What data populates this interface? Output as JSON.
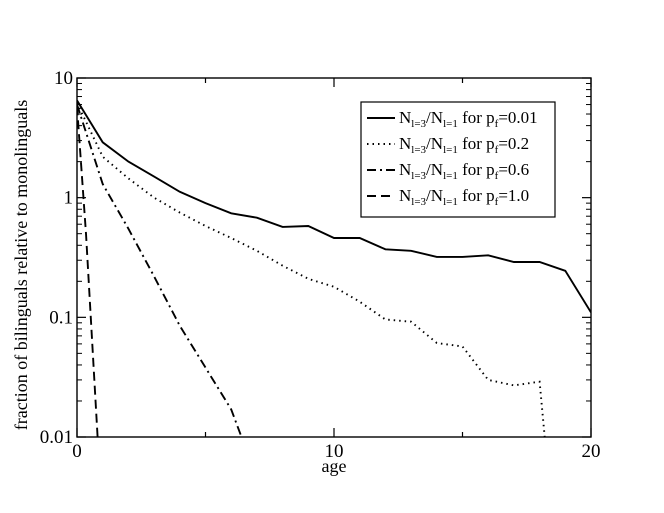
{
  "chart_data": {
    "type": "line",
    "title": "",
    "xlabel": "age",
    "ylabel": "fraction of bilinguals relative to monolinguals",
    "xlim": [
      0,
      20
    ],
    "ylim": [
      0.01,
      10
    ],
    "yscale": "log",
    "grid": false,
    "legend_position": "top-right",
    "x_ticks": [
      {
        "value": 0,
        "label": "0"
      },
      {
        "value": 10,
        "label": "10"
      },
      {
        "value": 20,
        "label": "20"
      }
    ],
    "y_ticks": [
      {
        "value": 0.01,
        "label": "0.01"
      },
      {
        "value": 0.1,
        "label": "0.1"
      },
      {
        "value": 1,
        "label": "1"
      },
      {
        "value": 10,
        "label": "10"
      }
    ],
    "series": [
      {
        "legend": {
          "n": "N",
          "sub1": "l=3",
          "slash": "/",
          "sub2": "l=1",
          "mid": " for p",
          "psub": "f",
          "val": "=0.01"
        },
        "dash": "solid",
        "x": [
          0,
          1,
          2,
          3,
          4,
          5,
          6,
          7,
          8,
          9,
          10,
          11,
          12,
          13,
          14,
          15,
          16,
          17,
          18,
          19,
          20
        ],
        "y": [
          6.5,
          2.9,
          2.0,
          1.5,
          1.12,
          0.9,
          0.74,
          0.68,
          0.57,
          0.58,
          0.46,
          0.46,
          0.37,
          0.36,
          0.32,
          0.32,
          0.33,
          0.29,
          0.29,
          0.245,
          0.11
        ]
      },
      {
        "legend": {
          "n": "N",
          "sub1": "l=3",
          "slash": "/",
          "sub2": "l=1",
          "mid": " for p",
          "psub": "f",
          "val": "=0.2"
        },
        "dash": "dotted",
        "x": [
          0,
          1,
          2,
          3,
          4,
          5,
          6,
          7,
          8,
          9,
          10,
          11,
          12,
          13,
          14,
          15,
          16,
          17,
          18,
          18.2
        ],
        "y": [
          6.2,
          2.2,
          1.45,
          1.0,
          0.75,
          0.58,
          0.46,
          0.36,
          0.27,
          0.21,
          0.18,
          0.135,
          0.096,
          0.092,
          0.061,
          0.057,
          0.03,
          0.027,
          0.029,
          0.01
        ]
      },
      {
        "legend": {
          "n": "N",
          "sub1": "l=3",
          "slash": "/",
          "sub2": "l=1",
          "mid": " for p",
          "psub": "f",
          "val": "=0.6"
        },
        "dash": "dashdot",
        "x": [
          0,
          1,
          2,
          3,
          4,
          5,
          6,
          6.4
        ],
        "y": [
          6.0,
          1.3,
          0.55,
          0.22,
          0.085,
          0.038,
          0.017,
          0.01
        ]
      },
      {
        "legend": {
          "n": "N",
          "sub1": "l=3",
          "slash": "/",
          "sub2": "l=1",
          "mid": " for p",
          "psub": "f",
          "val": "=1.0"
        },
        "dash": "dashed",
        "x": [
          0,
          0.35,
          0.8
        ],
        "y": [
          5.8,
          0.5,
          0.01
        ]
      }
    ]
  }
}
